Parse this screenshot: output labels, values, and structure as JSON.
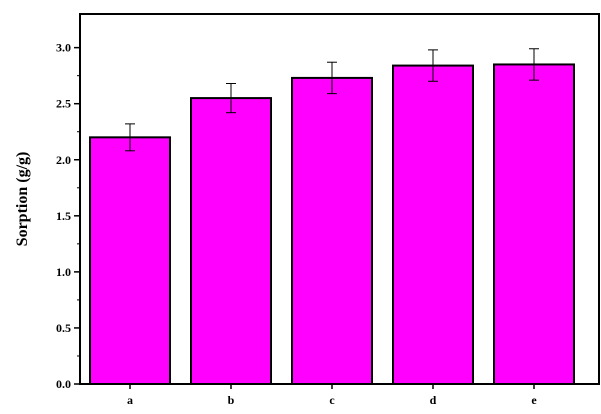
{
  "chart_data": {
    "type": "bar",
    "title": "",
    "xlabel": "",
    "ylabel": "Sorption (g/g)",
    "categories": [
      "a",
      "b",
      "c",
      "d",
      "e"
    ],
    "values": [
      2.2,
      2.55,
      2.73,
      2.84,
      2.85
    ],
    "errors": [
      0.12,
      0.13,
      0.14,
      0.14,
      0.14
    ],
    "ylim": [
      0.0,
      3.3
    ],
    "yticks": [
      0.0,
      0.5,
      1.0,
      1.5,
      2.0,
      2.5,
      3.0
    ],
    "ytick_labels": [
      "0.0",
      "0.5",
      "1.0",
      "1.5",
      "2.0",
      "2.5",
      "3.0"
    ],
    "grid": false,
    "legend": "none",
    "bar_color": "#ff00ff",
    "edge_color": "#000000"
  }
}
